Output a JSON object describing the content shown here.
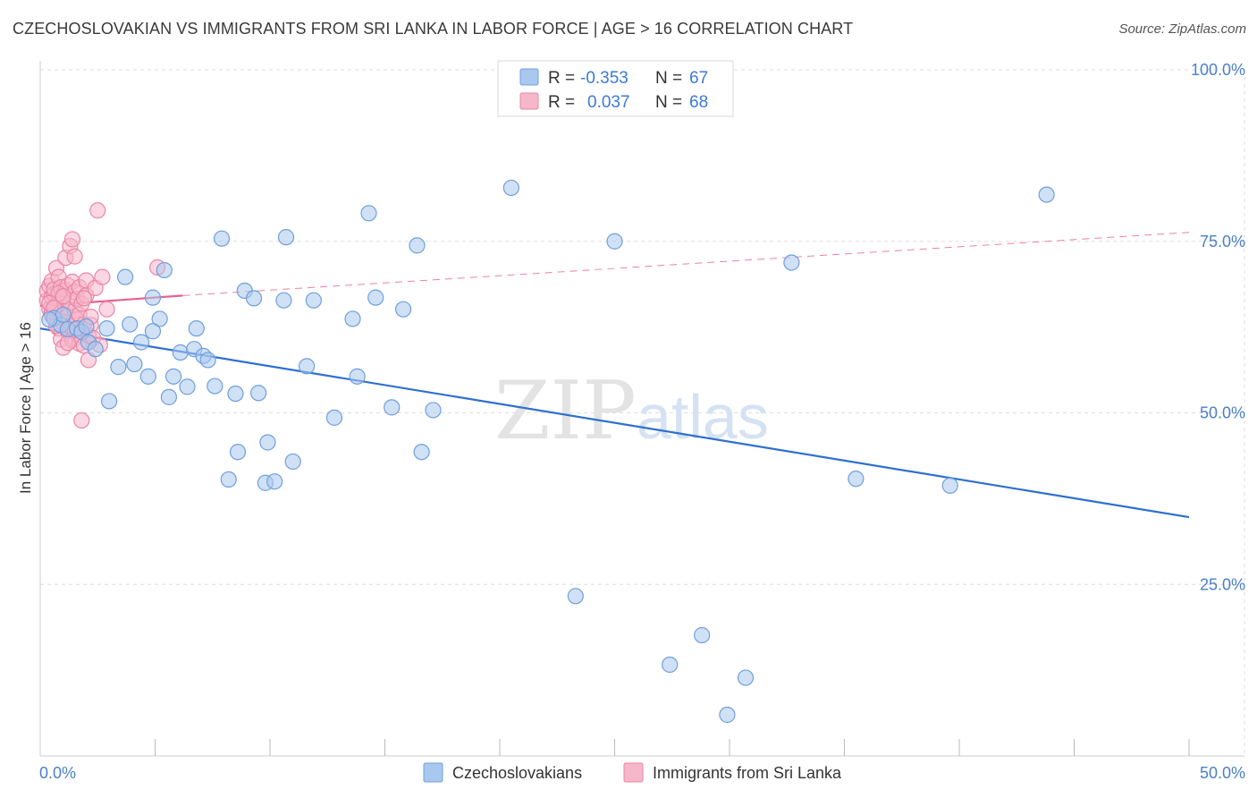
{
  "title": "CZECHOSLOVAKIAN VS IMMIGRANTS FROM SRI LANKA IN LABOR FORCE | AGE > 16 CORRELATION CHART",
  "source": "Source: ZipAtlas.com",
  "watermark": {
    "left": "ZIP",
    "right": "atlas"
  },
  "legend_box": {
    "rows": [
      {
        "r_label": "R =",
        "r_value": "-0.353",
        "n_label": "N =",
        "n_value": "67"
      },
      {
        "r_label": "R =",
        "r_value": "0.037",
        "n_label": "N =",
        "n_value": "68"
      }
    ]
  },
  "colors": {
    "blue_fill": "#a9c8ef",
    "blue_stroke": "#6f9fdc",
    "blue_line": "#2e6fd1",
    "pink_fill": "#f6b7ca",
    "pink_stroke": "#ea86a6",
    "pink_line": "#e8628f",
    "tick": "#4a7fcc",
    "grid": "#dddddd"
  },
  "chart_data": {
    "type": "scatter",
    "title": "CZECHOSLOVAKIAN VS IMMIGRANTS FROM SRI LANKA IN LABOR FORCE | AGE > 16 CORRELATION CHART",
    "xlabel": "",
    "ylabel": "In Labor Force | Age > 16",
    "xlim": [
      0,
      50
    ],
    "ylim": [
      0,
      100
    ],
    "x_ticks": [
      "0.0%",
      "50.0%"
    ],
    "y_ticks": [
      {
        "value": 25,
        "label": "25.0%"
      },
      {
        "value": 50,
        "label": "50.0%"
      },
      {
        "value": 75,
        "label": "75.0%"
      },
      {
        "value": 100,
        "label": "100.0%"
      }
    ],
    "grid": true,
    "legend_placement": "bottom",
    "series": [
      {
        "name": "Czechoslovakians",
        "color": "#a9c8ef",
        "trend": {
          "x": [
            0,
            50
          ],
          "y": [
            62.3,
            34.8
          ],
          "style": "solid"
        },
        "points": [
          [
            0.6,
            63.8
          ],
          [
            0.9,
            62.8
          ],
          [
            1.2,
            62.2
          ],
          [
            1.6,
            62.3
          ],
          [
            1.8,
            61.8
          ],
          [
            2.1,
            60.3
          ],
          [
            2.4,
            59.3
          ],
          [
            2.9,
            62.3
          ],
          [
            3.0,
            51.7
          ],
          [
            3.4,
            56.7
          ],
          [
            3.7,
            69.8
          ],
          [
            3.9,
            62.9
          ],
          [
            4.1,
            57.1
          ],
          [
            4.4,
            60.3
          ],
          [
            4.7,
            55.3
          ],
          [
            4.9,
            66.8
          ],
          [
            5.2,
            63.7
          ],
          [
            5.4,
            70.8
          ],
          [
            5.6,
            52.3
          ],
          [
            5.8,
            55.3
          ],
          [
            6.1,
            58.8
          ],
          [
            6.4,
            53.8
          ],
          [
            6.7,
            59.3
          ],
          [
            6.8,
            62.3
          ],
          [
            7.1,
            58.3
          ],
          [
            7.3,
            57.7
          ],
          [
            7.6,
            53.9
          ],
          [
            7.9,
            75.4
          ],
          [
            8.2,
            40.3
          ],
          [
            8.5,
            52.8
          ],
          [
            8.6,
            44.3
          ],
          [
            8.9,
            67.8
          ],
          [
            9.3,
            66.7
          ],
          [
            9.5,
            52.9
          ],
          [
            9.8,
            39.8
          ],
          [
            9.9,
            45.7
          ],
          [
            10.2,
            40.0
          ],
          [
            10.6,
            66.4
          ],
          [
            10.7,
            75.6
          ],
          [
            11.0,
            42.9
          ],
          [
            11.6,
            56.8
          ],
          [
            11.9,
            66.4
          ],
          [
            12.8,
            49.3
          ],
          [
            13.6,
            63.7
          ],
          [
            13.8,
            55.3
          ],
          [
            14.3,
            79.1
          ],
          [
            14.6,
            66.8
          ],
          [
            15.3,
            50.8
          ],
          [
            15.8,
            65.1
          ],
          [
            16.4,
            74.4
          ],
          [
            16.6,
            44.3
          ],
          [
            17.1,
            50.4
          ],
          [
            20.5,
            82.8
          ],
          [
            23.3,
            23.3
          ],
          [
            25.0,
            75.0
          ],
          [
            27.4,
            13.3
          ],
          [
            28.8,
            17.6
          ],
          [
            29.9,
            6.0
          ],
          [
            30.7,
            11.4
          ],
          [
            32.7,
            71.9
          ],
          [
            35.5,
            40.4
          ],
          [
            39.6,
            39.4
          ],
          [
            43.8,
            81.8
          ],
          [
            1.0,
            64.3
          ],
          [
            2.0,
            62.6
          ],
          [
            4.9,
            61.9
          ],
          [
            0.4,
            63.6
          ]
        ]
      },
      {
        "name": "Immigrants from Sri Lanka",
        "color": "#f6b7ca",
        "trend": {
          "x": [
            0,
            6.2
          ],
          "y": [
            65.6,
            67.1
          ],
          "style": "solid",
          "extended": {
            "x": [
              6.2,
              50
            ],
            "y": [
              67.1,
              76.3
            ],
            "style": "dashed"
          }
        },
        "points": [
          [
            0.3,
            66.4
          ],
          [
            0.3,
            67.8
          ],
          [
            0.4,
            65.1
          ],
          [
            0.4,
            68.5
          ],
          [
            0.5,
            64.2
          ],
          [
            0.5,
            69.2
          ],
          [
            0.5,
            66.9
          ],
          [
            0.6,
            63.9
          ],
          [
            0.6,
            67.3
          ],
          [
            0.6,
            68.0
          ],
          [
            0.7,
            65.8
          ],
          [
            0.7,
            71.1
          ],
          [
            0.8,
            62.3
          ],
          [
            0.8,
            66.2
          ],
          [
            0.8,
            69.8
          ],
          [
            0.9,
            64.5
          ],
          [
            0.9,
            68.3
          ],
          [
            0.9,
            60.7
          ],
          [
            1.0,
            66.8
          ],
          [
            1.0,
            63.1
          ],
          [
            1.0,
            59.5
          ],
          [
            1.1,
            72.6
          ],
          [
            1.1,
            65.4
          ],
          [
            1.1,
            67.9
          ],
          [
            1.2,
            61.9
          ],
          [
            1.2,
            68.6
          ],
          [
            1.2,
            64.1
          ],
          [
            1.3,
            74.3
          ],
          [
            1.3,
            66.1
          ],
          [
            1.3,
            62.6
          ],
          [
            1.4,
            75.3
          ],
          [
            1.4,
            69.1
          ],
          [
            1.4,
            60.6
          ],
          [
            1.5,
            72.8
          ],
          [
            1.5,
            64.9
          ],
          [
            1.5,
            67.6
          ],
          [
            1.6,
            61.4
          ],
          [
            1.6,
            66.6
          ],
          [
            1.6,
            63.6
          ],
          [
            1.7,
            60.1
          ],
          [
            1.7,
            68.3
          ],
          [
            1.7,
            64.3
          ],
          [
            1.8,
            48.9
          ],
          [
            1.8,
            65.9
          ],
          [
            1.9,
            59.8
          ],
          [
            1.9,
            62.9
          ],
          [
            2.0,
            69.3
          ],
          [
            2.0,
            67.1
          ],
          [
            2.1,
            61.3
          ],
          [
            2.1,
            57.7
          ],
          [
            2.2,
            62.8
          ],
          [
            2.3,
            60.9
          ],
          [
            2.4,
            68.2
          ],
          [
            2.5,
            79.5
          ],
          [
            2.6,
            59.9
          ],
          [
            2.7,
            69.8
          ],
          [
            2.9,
            65.1
          ],
          [
            5.1,
            71.2
          ],
          [
            0.5,
            64.7
          ],
          [
            0.7,
            62.7
          ],
          [
            0.8,
            67.4
          ],
          [
            1.2,
            60.2
          ],
          [
            1.5,
            62.1
          ],
          [
            1.9,
            66.7
          ],
          [
            2.2,
            64.0
          ],
          [
            0.4,
            66.0
          ],
          [
            0.6,
            65.3
          ],
          [
            1.0,
            67.0
          ]
        ]
      }
    ]
  }
}
